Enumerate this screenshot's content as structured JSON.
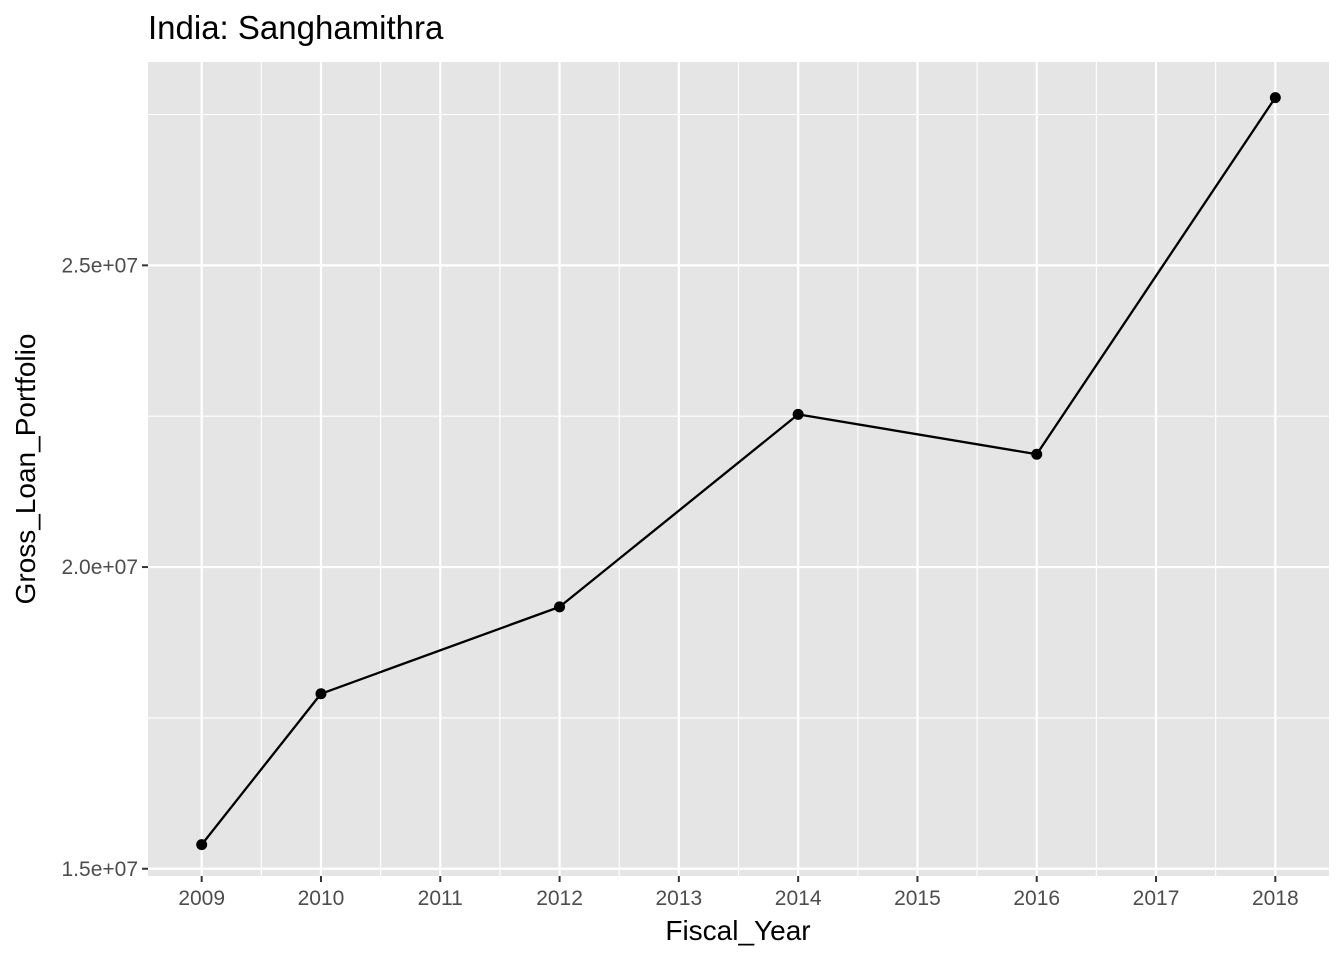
{
  "chart_data": {
    "type": "line",
    "title": "India:  Sanghamithra",
    "xlabel": "Fiscal_Year",
    "ylabel": "Gross_Loan_Portfolio",
    "x_ticks": [
      "2009",
      "2010",
      "2011",
      "2012",
      "2013",
      "2014",
      "2015",
      "2016",
      "2017",
      "2018"
    ],
    "y_ticks": [
      "1.5e+07",
      "2.0e+07",
      "2.5e+07"
    ],
    "y_tick_values": [
      15000000,
      20000000,
      25000000
    ],
    "xlim": [
      2008.55,
      2018.45
    ],
    "ylim": [
      14880000,
      28370000
    ],
    "grid": true,
    "legend": "none",
    "series": [
      {
        "x": [
          2009,
          2010,
          2012,
          2014,
          2016,
          2018
        ],
        "y": [
          15400000,
          17900000,
          19340000,
          22530000,
          21870000,
          27780000
        ]
      }
    ],
    "colors": {
      "panel_background": "#e5e5e5",
      "grid": "#ffffff",
      "line": "#000000",
      "point": "#000000",
      "tick_text": "#4d4d4d",
      "tick_mark": "#333333"
    }
  }
}
